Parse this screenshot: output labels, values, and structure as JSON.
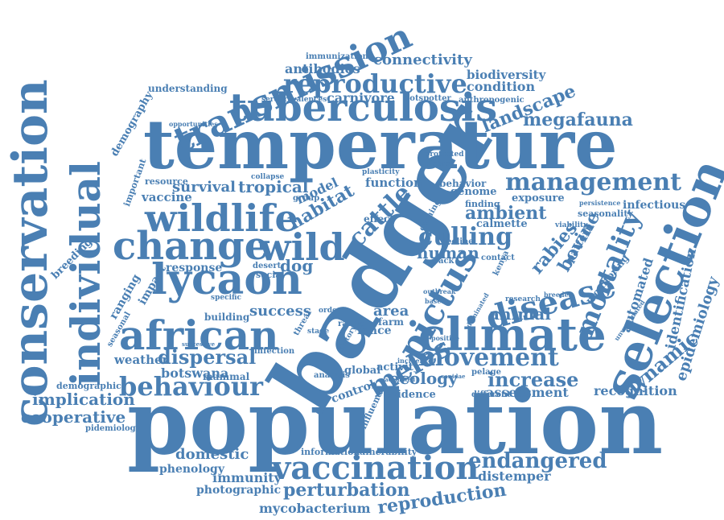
{
  "color": "#4a7fb3",
  "background": "#ffffff",
  "words": [
    "population",
    "badger",
    "temperature",
    "conservation",
    "selection",
    "climate",
    "transmission",
    "tuberculosis",
    "individual",
    "change",
    "lycaon",
    "african",
    "wildlife",
    "wild",
    "vaccination",
    "pictus",
    "disease",
    "reproductive",
    "management",
    "mortality",
    "behaviour",
    "movement",
    "meles",
    "endangered",
    "reproduction",
    "perturbation",
    "cattle",
    "culling",
    "dynamic",
    "epidemiology",
    "megafauna",
    "landscape",
    "implication",
    "cooperative",
    "dispersal",
    "botswana",
    "increase",
    "assessment",
    "recognition",
    "identification",
    "automated",
    "domestic",
    "phenology",
    "immunity",
    "photographic",
    "mycobacterium",
    "distemper",
    "connectivity",
    "antibodies",
    "immunization",
    "biodiversity",
    "condition",
    "carnivore",
    "hotspotter",
    "anthropogenic",
    "seroprevalences",
    "understanding",
    "demography",
    "opportunities",
    "survival",
    "tropical",
    "vaccine",
    "resource",
    "genome",
    "behavior",
    "ambient",
    "exposure",
    "infectious",
    "seasonality",
    "habitat",
    "model",
    "function",
    "bovine",
    "rabies",
    "ecology",
    "human",
    "animal",
    "success",
    "response",
    "ranging",
    "impact",
    "weather",
    "dog",
    "breeding",
    "demographic",
    "global",
    "analysis",
    "infection",
    "activity",
    "control",
    "evidence",
    "influence",
    "fence",
    "area",
    "farm",
    "information",
    "vulnerability",
    "research",
    "pelage",
    "breeder",
    "viability",
    "monitoring",
    "collapse",
    "plasticity",
    "protected",
    "disease",
    "pidemiology",
    "important",
    "mammal",
    "building",
    "seasonal",
    "successive",
    "specific",
    "pattern",
    "kenya",
    "calmette",
    "effect",
    "group",
    "desert",
    "social",
    "range",
    "history",
    "persistence",
    "different",
    "unvaccinated",
    "finding",
    "earning",
    "decline",
    "contact",
    "pack",
    "based",
    "outbreak",
    "dominated",
    "canidae",
    "order",
    "stage",
    "threat",
    "vaccinated",
    "incidence",
    "positive"
  ]
}
